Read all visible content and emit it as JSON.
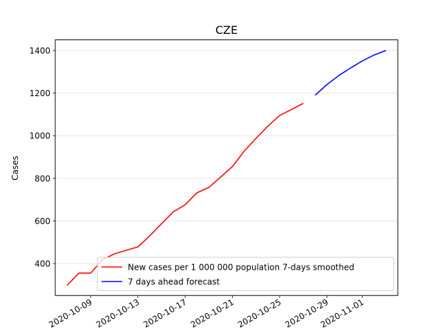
{
  "chart_data": {
    "type": "line",
    "title": "CZE",
    "xlabel": "",
    "ylabel": "Cases",
    "x_tick_labels": [
      "2020-10-09",
      "2020-10-13",
      "2020-10-17",
      "2020-10-21",
      "2020-10-25",
      "2020-10-29",
      "2020-11-01"
    ],
    "x_ticks": [
      "2020-10-09",
      "2020-10-13",
      "2020-10-17",
      "2020-10-21",
      "2020-10-25",
      "2020-10-29",
      "2020-11-01"
    ],
    "xlim": [
      "2020-10-06",
      "2020-11-04"
    ],
    "y_ticks": [
      400,
      600,
      800,
      1000,
      1200,
      1400
    ],
    "ylim": [
      250,
      1450
    ],
    "grid": "horizontal",
    "legend_position": "lower-right",
    "series": [
      {
        "name": "New cases per 1 000 000 population 7-days smoothed",
        "color": "#ff0000",
        "x": [
          "2020-10-07",
          "2020-10-08",
          "2020-10-09",
          "2020-10-10",
          "2020-10-11",
          "2020-10-12",
          "2020-10-13",
          "2020-10-14",
          "2020-10-15",
          "2020-10-16",
          "2020-10-17",
          "2020-10-18",
          "2020-10-19",
          "2020-10-20",
          "2020-10-21",
          "2020-10-22",
          "2020-10-23",
          "2020-10-24",
          "2020-10-25",
          "2020-10-26",
          "2020-10-27"
        ],
        "values": [
          297,
          355,
          355,
          418,
          445,
          462,
          478,
          530,
          587,
          643,
          676,
          732,
          757,
          806,
          855,
          928,
          988,
          1045,
          1095,
          1123,
          1152
        ]
      },
      {
        "name": "7 days ahead forecast",
        "color": "#0000ff",
        "x": [
          "2020-10-28",
          "2020-10-29",
          "2020-10-30",
          "2020-10-31",
          "2020-11-01",
          "2020-11-02",
          "2020-11-03"
        ],
        "values": [
          1190,
          1240,
          1282,
          1318,
          1351,
          1379,
          1400
        ]
      }
    ]
  }
}
